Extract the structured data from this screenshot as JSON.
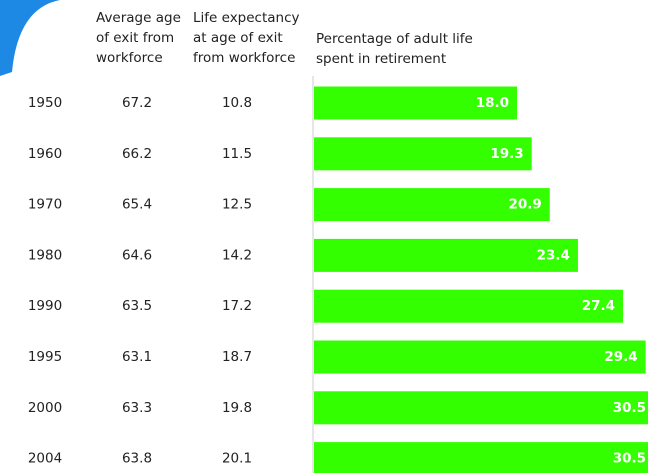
{
  "chart_data": {
    "type": "bar",
    "categories": [
      "1950",
      "1960",
      "1970",
      "1980",
      "1990",
      "1995",
      "2000",
      "2004"
    ],
    "columns": [
      {
        "header": [
          "Average age",
          "of exit from",
          "workforce"
        ],
        "values": [
          67.2,
          66.2,
          65.4,
          64.6,
          63.5,
          63.1,
          63.3,
          63.8
        ]
      },
      {
        "header": [
          "Life expectancy",
          "at age of exit",
          "from workforce"
        ],
        "values": [
          10.8,
          11.5,
          12.5,
          14.2,
          17.2,
          18.7,
          19.8,
          20.1
        ]
      }
    ],
    "bar_header": [
      "Percentage of adult life",
      "spent in retirement"
    ],
    "values": [
      18.0,
      19.3,
      20.9,
      23.4,
      27.4,
      29.4,
      30.5,
      30.5
    ],
    "value_labels": [
      "18.0",
      "19.3",
      "20.9",
      "23.4",
      "27.4",
      "29.4",
      "30.5",
      "30.5"
    ],
    "color": "#33ff00"
  }
}
